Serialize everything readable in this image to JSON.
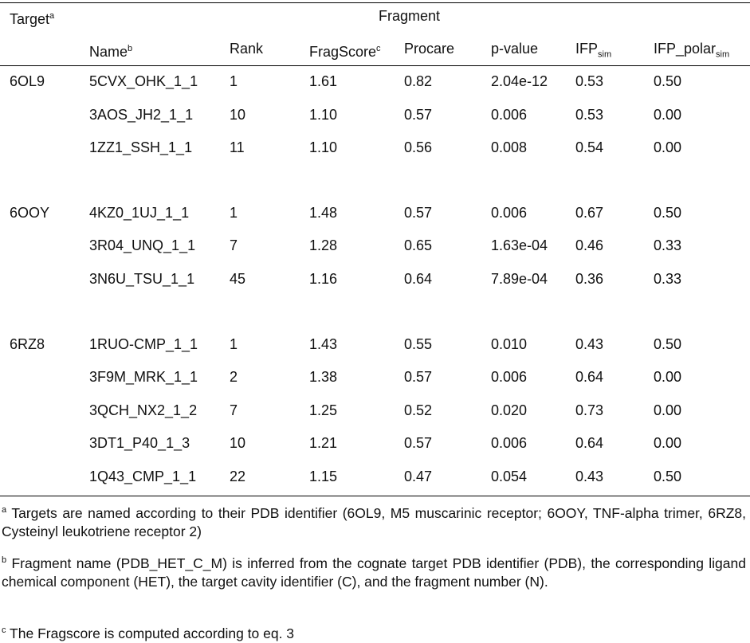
{
  "header": {
    "target": "Target",
    "target_mark": "a",
    "fragment": "Fragment"
  },
  "columns": [
    {
      "label": "Name",
      "sup": "b"
    },
    {
      "label": "Rank"
    },
    {
      "label": "FragScore",
      "sup": "c"
    },
    {
      "label": "Procare"
    },
    {
      "label": "p-value"
    },
    {
      "label": "IFP",
      "sub": "sim"
    },
    {
      "label": "IFP_polar",
      "sub": "sim"
    }
  ],
  "groups": [
    {
      "target": "6OL9",
      "rows": [
        [
          "5CVX_OHK_1_1",
          "1",
          "1.61",
          "0.82",
          "2.04e-12",
          "0.53",
          "0.50"
        ],
        [
          "3AOS_JH2_1_1",
          "10",
          "1.10",
          "0.57",
          "0.006",
          "0.53",
          "0.00"
        ],
        [
          "1ZZ1_SSH_1_1",
          "11",
          "1.10",
          "0.56",
          "0.008",
          "0.54",
          "0.00"
        ]
      ]
    },
    {
      "target": "6OOY",
      "rows": [
        [
          "4KZ0_1UJ_1_1",
          "1",
          "1.48",
          "0.57",
          "0.006",
          "0.67",
          "0.50"
        ],
        [
          "3R04_UNQ_1_1",
          "7",
          "1.28",
          "0.65",
          "1.63e-04",
          "0.46",
          "0.33"
        ],
        [
          "3N6U_TSU_1_1",
          "45",
          "1.16",
          "0.64",
          "7.89e-04",
          "0.36",
          "0.33"
        ]
      ]
    },
    {
      "target": "6RZ8",
      "rows": [
        [
          "1RUO-CMP_1_1",
          "1",
          "1.43",
          "0.55",
          "0.010",
          "0.43",
          "0.50"
        ],
        [
          "3F9M_MRK_1_1",
          "2",
          "1.38",
          "0.57",
          "0.006",
          "0.64",
          "0.00"
        ],
        [
          "3QCH_NX2_1_2",
          "7",
          "1.25",
          "0.52",
          "0.020",
          "0.73",
          "0.00"
        ],
        [
          "3DT1_P40_1_3",
          "10",
          "1.21",
          "0.57",
          "0.006",
          "0.64",
          "0.00"
        ],
        [
          "1Q43_CMP_1_1",
          "22",
          "1.15",
          "0.47",
          "0.054",
          "0.43",
          "0.50"
        ]
      ]
    }
  ],
  "footnotes": [
    {
      "mark": "a",
      "text": "Targets are named according to their PDB identifier (6OL9, M5 muscarinic receptor; 6OOY, TNF-alpha trimer, 6RZ8, Cysteinyl leukotriene receptor 2)"
    },
    {
      "mark": "b",
      "text": "Fragment name (PDB_HET_C_M) is inferred from the cognate target PDB identifier (PDB), the corresponding ligand chemical component (HET), the target cavity identifier (C), and the fragment number (N)."
    },
    {
      "mark": "c",
      "text": "The Fragscore is computed according to eq. 3"
    }
  ]
}
